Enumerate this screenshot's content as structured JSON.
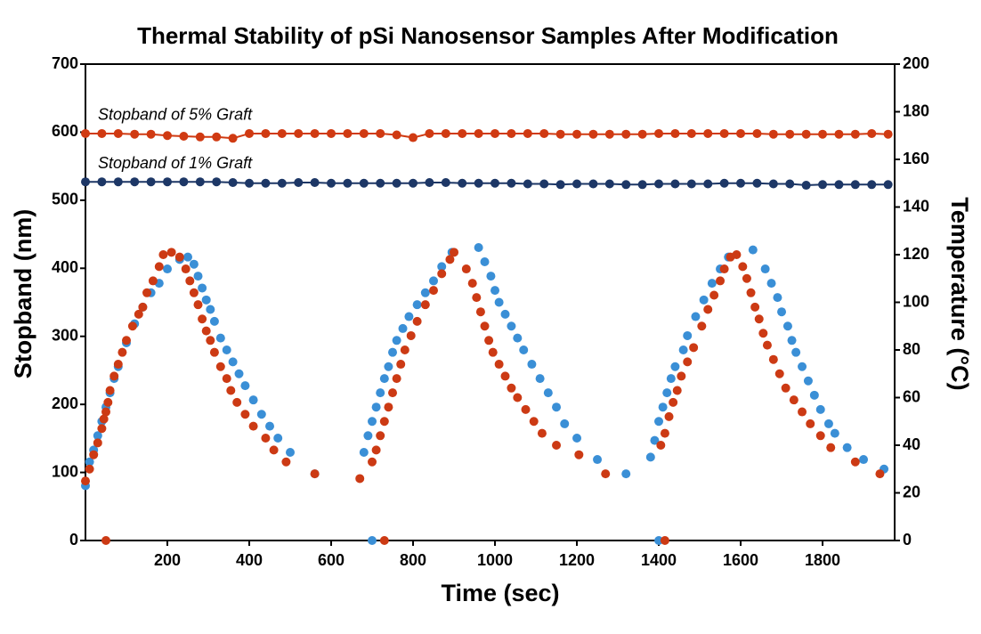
{
  "chart_data": {
    "type": "scatter",
    "title": "Thermal Stability of pSi Nanosensor Samples After Modification",
    "x_label": "Time (sec)",
    "y_label": "Stopband (nm)",
    "y2_label": "Temperature (°C)",
    "xlim": [
      0,
      1976
    ],
    "xticks": [
      200,
      400,
      600,
      800,
      1000,
      1200,
      1400,
      1600,
      1800
    ],
    "ylim": [
      0,
      700
    ],
    "yticks": [
      0,
      100,
      200,
      300,
      400,
      500,
      600,
      700
    ],
    "y2lim": [
      0,
      200
    ],
    "y2ticks": [
      0,
      20,
      40,
      60,
      80,
      100,
      120,
      140,
      160,
      180,
      200
    ],
    "series": [
      {
        "name": "Stopband of 5% Graft",
        "color": "#d03a12",
        "connect": true,
        "x": [
          0,
          40,
          80,
          120,
          160,
          200,
          240,
          280,
          320,
          360,
          400,
          440,
          480,
          520,
          560,
          600,
          640,
          680,
          720,
          760,
          800,
          840,
          880,
          920,
          960,
          1000,
          1040,
          1080,
          1120,
          1160,
          1200,
          1240,
          1280,
          1320,
          1360,
          1400,
          1440,
          1480,
          1520,
          1560,
          1600,
          1640,
          1680,
          1720,
          1760,
          1800,
          1840,
          1880,
          1920,
          1960
        ],
        "values": [
          598,
          598,
          598,
          597,
          597,
          595,
          594,
          593,
          593,
          591,
          598,
          598,
          598,
          598,
          598,
          598,
          598,
          598,
          598,
          596,
          592,
          598,
          598,
          598,
          598,
          598,
          598,
          598,
          598,
          597,
          597,
          597,
          597,
          597,
          597,
          598,
          598,
          598,
          598,
          598,
          598,
          598,
          597,
          597,
          597,
          597,
          597,
          597,
          598,
          597
        ]
      },
      {
        "name": "Stopband of 1% Graft",
        "color": "#1d3766",
        "connect": true,
        "x": [
          0,
          40,
          80,
          120,
          160,
          200,
          240,
          280,
          320,
          360,
          400,
          440,
          480,
          520,
          560,
          600,
          640,
          680,
          720,
          760,
          800,
          840,
          880,
          920,
          960,
          1000,
          1040,
          1080,
          1120,
          1160,
          1200,
          1240,
          1280,
          1320,
          1360,
          1400,
          1440,
          1480,
          1520,
          1560,
          1600,
          1640,
          1680,
          1720,
          1760,
          1800,
          1840,
          1880,
          1920,
          1960
        ],
        "values": [
          527,
          527,
          527,
          527,
          527,
          527,
          527,
          527,
          527,
          526,
          525,
          525,
          525,
          526,
          526,
          525,
          525,
          525,
          525,
          525,
          525,
          526,
          526,
          525,
          525,
          525,
          525,
          524,
          524,
          523,
          524,
          524,
          524,
          523,
          523,
          524,
          524,
          524,
          524,
          525,
          525,
          525,
          524,
          524,
          522,
          523,
          523,
          523,
          523,
          523
        ]
      },
      {
        "color": "#3a8fd6",
        "axis": "y2",
        "x": [
          0,
          10,
          20,
          30,
          40,
          50,
          60,
          70,
          80,
          100,
          120,
          140,
          160,
          180,
          200,
          230,
          250,
          265,
          275,
          285,
          295,
          305,
          315,
          330,
          345,
          360,
          375,
          390,
          410,
          430,
          450,
          470,
          500,
          560,
          680,
          690,
          700,
          700,
          710,
          720,
          730,
          740,
          750,
          760,
          775,
          790,
          810,
          830,
          850,
          870,
          895,
          960,
          975,
          990,
          1000,
          1010,
          1025,
          1040,
          1055,
          1070,
          1090,
          1110,
          1130,
          1150,
          1170,
          1200,
          1250,
          1320,
          1380,
          1390,
          1400,
          1400,
          1410,
          1420,
          1430,
          1440,
          1460,
          1470,
          1490,
          1510,
          1530,
          1550,
          1570,
          1630,
          1660,
          1675,
          1690,
          1700,
          1715,
          1725,
          1735,
          1750,
          1765,
          1780,
          1795,
          1815,
          1830,
          1860,
          1900,
          1950
        ],
        "values": [
          23,
          33,
          38,
          44,
          50,
          56,
          62,
          68,
          73,
          83,
          91,
          98,
          104,
          108,
          114,
          118,
          119,
          116,
          111,
          106,
          101,
          97,
          92,
          85,
          80,
          75,
          70,
          65,
          59,
          53,
          48,
          43,
          37,
          28,
          37,
          44,
          0,
          50,
          56,
          62,
          68,
          73,
          79,
          84,
          89,
          94,
          99,
          104,
          109,
          115,
          121,
          123,
          117,
          111,
          105,
          100,
          95,
          90,
          85,
          80,
          74,
          68,
          62,
          56,
          49,
          43,
          34,
          28,
          35,
          42,
          0,
          50,
          56,
          62,
          68,
          73,
          80,
          86,
          94,
          101,
          108,
          114,
          119,
          122,
          114,
          108,
          102,
          96,
          90,
          84,
          79,
          73,
          67,
          61,
          55,
          49,
          45,
          39,
          34,
          30
        ]
      },
      {
        "color": "#cc3a14",
        "axis": "y2",
        "x": [
          0,
          10,
          20,
          30,
          40,
          45,
          50,
          50,
          55,
          60,
          70,
          80,
          90,
          100,
          115,
          130,
          140,
          150,
          165,
          180,
          190,
          210,
          230,
          245,
          255,
          265,
          275,
          285,
          295,
          305,
          315,
          330,
          345,
          355,
          370,
          390,
          410,
          440,
          460,
          490,
          560,
          670,
          700,
          710,
          720,
          730,
          730,
          740,
          750,
          760,
          770,
          780,
          795,
          810,
          830,
          850,
          870,
          890,
          900,
          930,
          945,
          955,
          965,
          975,
          985,
          995,
          1010,
          1025,
          1040,
          1055,
          1075,
          1095,
          1115,
          1150,
          1205,
          1270,
          1405,
          1415,
          1415,
          1425,
          1435,
          1445,
          1455,
          1470,
          1485,
          1505,
          1520,
          1535,
          1550,
          1560,
          1575,
          1590,
          1605,
          1615,
          1625,
          1635,
          1645,
          1655,
          1665,
          1680,
          1695,
          1710,
          1730,
          1750,
          1770,
          1795,
          1820,
          1880,
          1940
        ],
        "values": [
          25,
          30,
          36,
          41,
          47,
          51,
          0,
          54,
          58,
          63,
          69,
          74,
          79,
          84,
          90,
          95,
          98,
          104,
          109,
          115,
          120,
          121,
          119,
          114,
          109,
          104,
          99,
          93,
          88,
          84,
          79,
          73,
          68,
          63,
          58,
          53,
          48,
          43,
          38,
          33,
          28,
          26,
          33,
          38,
          44,
          0,
          50,
          56,
          62,
          68,
          74,
          80,
          86,
          92,
          99,
          105,
          112,
          118,
          121,
          114,
          108,
          102,
          96,
          90,
          84,
          79,
          74,
          69,
          64,
          60,
          55,
          50,
          45,
          40,
          36,
          28,
          40,
          0,
          45,
          52,
          58,
          63,
          69,
          75,
          81,
          90,
          97,
          103,
          109,
          114,
          119,
          120,
          115,
          110,
          104,
          98,
          93,
          87,
          82,
          76,
          70,
          64,
          59,
          54,
          49,
          44,
          39,
          33,
          28
        ]
      }
    ]
  }
}
